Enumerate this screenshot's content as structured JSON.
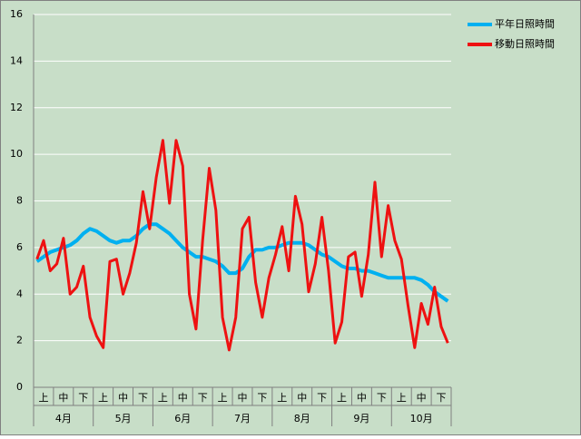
{
  "chart_data": {
    "type": "line",
    "categories": [
      null,
      "上",
      null,
      null,
      "中",
      null,
      null,
      "下",
      null,
      null,
      "上",
      null,
      null,
      "中",
      null,
      null,
      "下",
      null,
      null,
      "上",
      null,
      null,
      "中",
      null,
      null,
      "下",
      null,
      null,
      "上",
      null,
      null,
      "中",
      null,
      null,
      "下",
      null,
      null,
      "上",
      null,
      null,
      "中",
      null,
      null,
      "下",
      null,
      null,
      "上",
      null,
      null,
      "中",
      null,
      null,
      "下",
      null,
      null,
      "上",
      null,
      null,
      "中",
      null,
      null,
      "下",
      null
    ],
    "groups": [
      "4月",
      "5月",
      "6月",
      "7月",
      "8月",
      "9月",
      "10月"
    ],
    "series": [
      {
        "name": "平年日照時間",
        "color": "#00b0f0",
        "values": [
          5.4,
          5.6,
          5.8,
          5.9,
          6.0,
          6.1,
          6.3,
          6.6,
          6.8,
          6.7,
          6.5,
          6.3,
          6.2,
          6.3,
          6.3,
          6.5,
          6.8,
          7.0,
          7.0,
          6.8,
          6.6,
          6.3,
          6.0,
          5.8,
          5.6,
          5.6,
          5.5,
          5.4,
          5.2,
          4.9,
          4.9,
          5.1,
          5.6,
          5.9,
          5.9,
          6.0,
          6.0,
          6.1,
          6.2,
          6.2,
          6.2,
          6.1,
          5.9,
          5.7,
          5.6,
          5.4,
          5.2,
          5.1,
          5.1,
          5.0,
          5.0,
          4.9,
          4.8,
          4.7,
          4.7,
          4.7,
          4.7,
          4.7,
          4.6,
          4.4,
          4.1,
          3.9,
          3.7
        ]
      },
      {
        "name": "移動日照時間",
        "color": "#ee1111",
        "values": [
          5.5,
          6.3,
          5.0,
          5.3,
          6.4,
          4.0,
          4.3,
          5.2,
          3.0,
          2.2,
          1.7,
          5.4,
          5.5,
          4.0,
          4.9,
          6.2,
          8.4,
          6.8,
          9.0,
          10.6,
          7.9,
          10.6,
          9.5,
          4.0,
          2.5,
          6.3,
          9.4,
          7.6,
          3.0,
          1.6,
          3.0,
          6.8,
          7.3,
          4.5,
          3.0,
          4.7,
          5.7,
          6.9,
          5.0,
          8.2,
          7.0,
          4.1,
          5.3,
          7.3,
          5.0,
          1.9,
          2.8,
          5.6,
          5.8,
          3.9,
          5.7,
          8.8,
          5.6,
          7.8,
          6.3,
          5.5,
          3.5,
          1.7,
          3.6,
          2.7,
          4.3,
          2.6,
          1.9
        ]
      }
    ],
    "ylim": [
      0,
      16
    ],
    "yticks": [
      0,
      2,
      4,
      6,
      8,
      10,
      12,
      14,
      16
    ],
    "grid": true,
    "legend": "top-right"
  }
}
